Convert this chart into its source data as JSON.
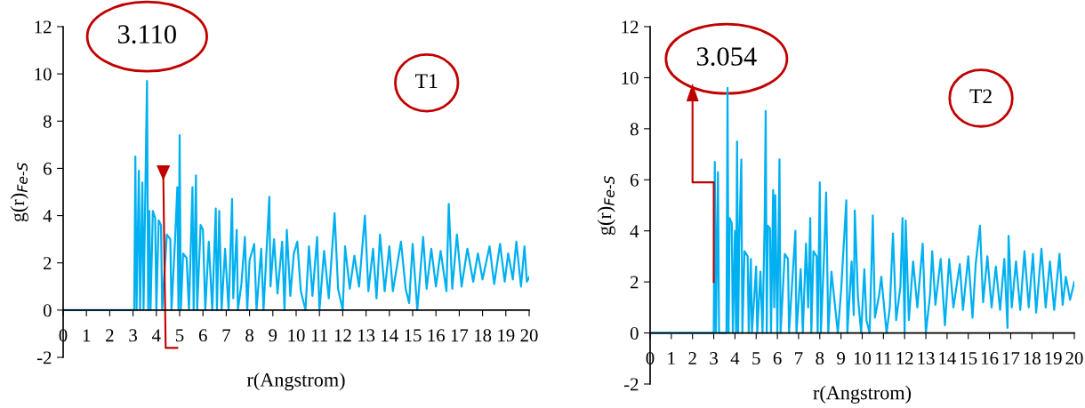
{
  "chart_data": [
    {
      "type": "line",
      "xlabel": "r(Angstrom)",
      "ylabel": "g(r)$_{Fe-S}$",
      "annotations": [
        "3.110",
        "T1"
      ],
      "color": "#00b0f0",
      "xlim": [
        0,
        20
      ],
      "xticks": [
        0,
        1,
        2,
        3,
        4,
        5,
        6,
        7,
        8,
        9,
        10,
        11,
        12,
        13,
        14,
        15,
        16,
        17,
        18,
        19,
        20
      ],
      "ylim": [
        -2,
        12
      ],
      "yticks": [
        -2,
        0,
        2,
        4,
        6,
        8,
        10,
        12
      ],
      "grid": false,
      "x": [
        0,
        3.05,
        3.1,
        3.15,
        3.25,
        3.3,
        3.4,
        3.45,
        3.6,
        3.65,
        3.7,
        3.75,
        3.85,
        3.95,
        4.0,
        4.1,
        4.2,
        4.25,
        4.45,
        4.6,
        4.65,
        4.8,
        4.9,
        4.95,
        5.0,
        5.05,
        5.15,
        5.3,
        5.4,
        5.55,
        5.6,
        5.7,
        5.75,
        5.9,
        6.0,
        6.1,
        6.25,
        6.4,
        6.55,
        6.6,
        6.7,
        6.8,
        6.95,
        7.1,
        7.25,
        7.3,
        7.45,
        7.5,
        7.65,
        7.8,
        7.9,
        8.0,
        8.2,
        8.3,
        8.5,
        8.6,
        8.85,
        8.9,
        9.05,
        9.2,
        9.4,
        9.5,
        9.6,
        9.75,
        9.9,
        10.05,
        10.2,
        10.4,
        10.55,
        10.7,
        10.9,
        11.0,
        11.2,
        11.4,
        11.65,
        11.8,
        12.0,
        12.1,
        12.3,
        12.5,
        12.7,
        12.95,
        13.1,
        13.3,
        13.45,
        13.6,
        13.8,
        14.0,
        14.15,
        14.5,
        14.7,
        14.85,
        15.0,
        15.2,
        15.45,
        15.6,
        15.8,
        16.0,
        16.2,
        16.45,
        16.55,
        16.7,
        16.9,
        17.1,
        17.35,
        17.6,
        17.8,
        18.0,
        18.3,
        18.5,
        18.75,
        18.95,
        19.1,
        19.3,
        19.45,
        19.65,
        19.8,
        19.9,
        20
      ],
      "values": [
        0,
        0,
        6.5,
        0,
        5.9,
        0,
        5.4,
        0,
        9.7,
        0,
        4.2,
        0,
        4.2,
        3.9,
        0,
        3.8,
        3.6,
        0,
        3.2,
        3.0,
        0,
        2.9,
        5.2,
        0,
        7.4,
        0,
        2.4,
        2.2,
        0,
        5.2,
        0,
        5.7,
        0,
        3.6,
        3.4,
        0,
        2.9,
        0,
        4.3,
        0,
        4.2,
        0,
        2.6,
        0,
        4.7,
        0.5,
        3.4,
        0,
        1.1,
        3.1,
        0,
        2.1,
        2.8,
        0,
        2.6,
        0,
        4.8,
        1.0,
        3.0,
        0.7,
        2.9,
        0,
        3.4,
        0.6,
        2.4,
        2.9,
        0.8,
        0,
        2.7,
        0.6,
        3.1,
        0,
        2.5,
        0.5,
        4.1,
        0.9,
        0,
        2.7,
        0.9,
        2.3,
        1.0,
        4.0,
        0.8,
        2.6,
        0.5,
        3.2,
        0.8,
        2.7,
        0.8,
        2.9,
        0.9,
        0.3,
        2.8,
        0,
        3.1,
        0.9,
        2.6,
        1.0,
        2.5,
        0.8,
        4.5,
        0.9,
        3.2,
        1.0,
        2.6,
        1.2,
        2.4,
        1.3,
        2.7,
        1.1,
        2.8,
        1.2,
        2.4,
        1.3,
        2.9,
        1.0,
        2.7,
        1.2,
        1.4
      ]
    },
    {
      "type": "line",
      "xlabel": "r(Angstrom)",
      "ylabel": "g(r)$_{Fe-S}$",
      "annotations": [
        "3.054",
        "T2"
      ],
      "color": "#00b0f0",
      "xlim": [
        0,
        20
      ],
      "xticks": [
        0,
        1,
        2,
        3,
        4,
        5,
        6,
        7,
        8,
        9,
        10,
        11,
        12,
        13,
        14,
        15,
        16,
        17,
        18,
        19,
        20
      ],
      "ylim": [
        -2,
        12
      ],
      "yticks": [
        -2,
        0,
        2,
        4,
        6,
        8,
        10,
        12
      ],
      "grid": false,
      "x": [
        0,
        3.0,
        3.05,
        3.1,
        3.2,
        3.25,
        3.6,
        3.65,
        3.7,
        3.75,
        3.85,
        3.9,
        4.0,
        4.05,
        4.1,
        4.15,
        4.2,
        4.3,
        4.35,
        4.45,
        4.6,
        4.65,
        4.75,
        4.8,
        5.0,
        5.05,
        5.2,
        5.3,
        5.4,
        5.45,
        5.5,
        5.55,
        5.65,
        5.7,
        5.8,
        5.85,
        5.9,
        6.0,
        6.05,
        6.1,
        6.15,
        6.35,
        6.5,
        6.55,
        6.85,
        6.9,
        7.1,
        7.2,
        7.35,
        7.45,
        7.55,
        7.6,
        7.7,
        7.85,
        7.9,
        8.0,
        8.05,
        8.2,
        8.3,
        8.4,
        8.55,
        8.7,
        8.85,
        9.0,
        9.25,
        9.3,
        9.5,
        9.6,
        9.65,
        9.8,
        9.95,
        10.1,
        10.2,
        10.35,
        10.5,
        10.6,
        10.8,
        10.9,
        11.15,
        11.3,
        11.45,
        11.6,
        11.8,
        11.9,
        12.0,
        12.05,
        12.2,
        12.4,
        12.6,
        12.85,
        13.0,
        13.2,
        13.3,
        13.45,
        13.7,
        13.9,
        14.1,
        14.3,
        14.6,
        14.75,
        15.0,
        15.2,
        15.35,
        15.55,
        15.7,
        15.9,
        16.1,
        16.3,
        16.5,
        16.7,
        16.85,
        16.9,
        17.05,
        17.25,
        17.45,
        17.65,
        17.85,
        18.05,
        18.2,
        18.45,
        18.65,
        18.85,
        19.05,
        19.3,
        19.45,
        19.6,
        19.8,
        20
      ],
      "values": [
        0,
        0,
        6.7,
        0,
        6.3,
        0,
        0,
        9.6,
        0,
        4.5,
        4.3,
        0,
        4.0,
        0,
        7.5,
        0,
        3.5,
        6.8,
        0,
        3.2,
        3.0,
        0,
        2.9,
        0,
        2.6,
        0,
        2.4,
        0,
        4.4,
        8.7,
        0,
        4.2,
        4.1,
        0,
        5.6,
        1.0,
        5.4,
        0,
        3.5,
        6.8,
        0,
        3.1,
        2.9,
        0,
        4.0,
        0,
        2.5,
        0,
        3.5,
        1.0,
        4.5,
        0,
        3.2,
        3.0,
        0,
        5.9,
        0,
        3.0,
        5.5,
        0,
        2.4,
        1.2,
        0,
        1.6,
        5.2,
        0,
        2.8,
        0.7,
        4.8,
        1.4,
        0,
        2.5,
        0.5,
        0,
        4.6,
        0.6,
        1.5,
        2.2,
        0,
        1.0,
        3.9,
        0.5,
        1.8,
        4.5,
        0,
        4.4,
        0.5,
        2.8,
        1.0,
        3.5,
        0,
        1.5,
        3.2,
        1.1,
        2.9,
        0.3,
        2.9,
        1.0,
        2.7,
        0.9,
        3.0,
        0.6,
        2.7,
        4.2,
        1.2,
        3.0,
        1.0,
        2.6,
        0.9,
        2.9,
        0.2,
        3.8,
        1.0,
        2.8,
        0.9,
        3.2,
        1.0,
        3.1,
        0.8,
        3.3,
        1.0,
        2.8,
        0.9,
        3.1,
        1.1,
        2.2,
        1.3,
        2.0
      ]
    }
  ]
}
